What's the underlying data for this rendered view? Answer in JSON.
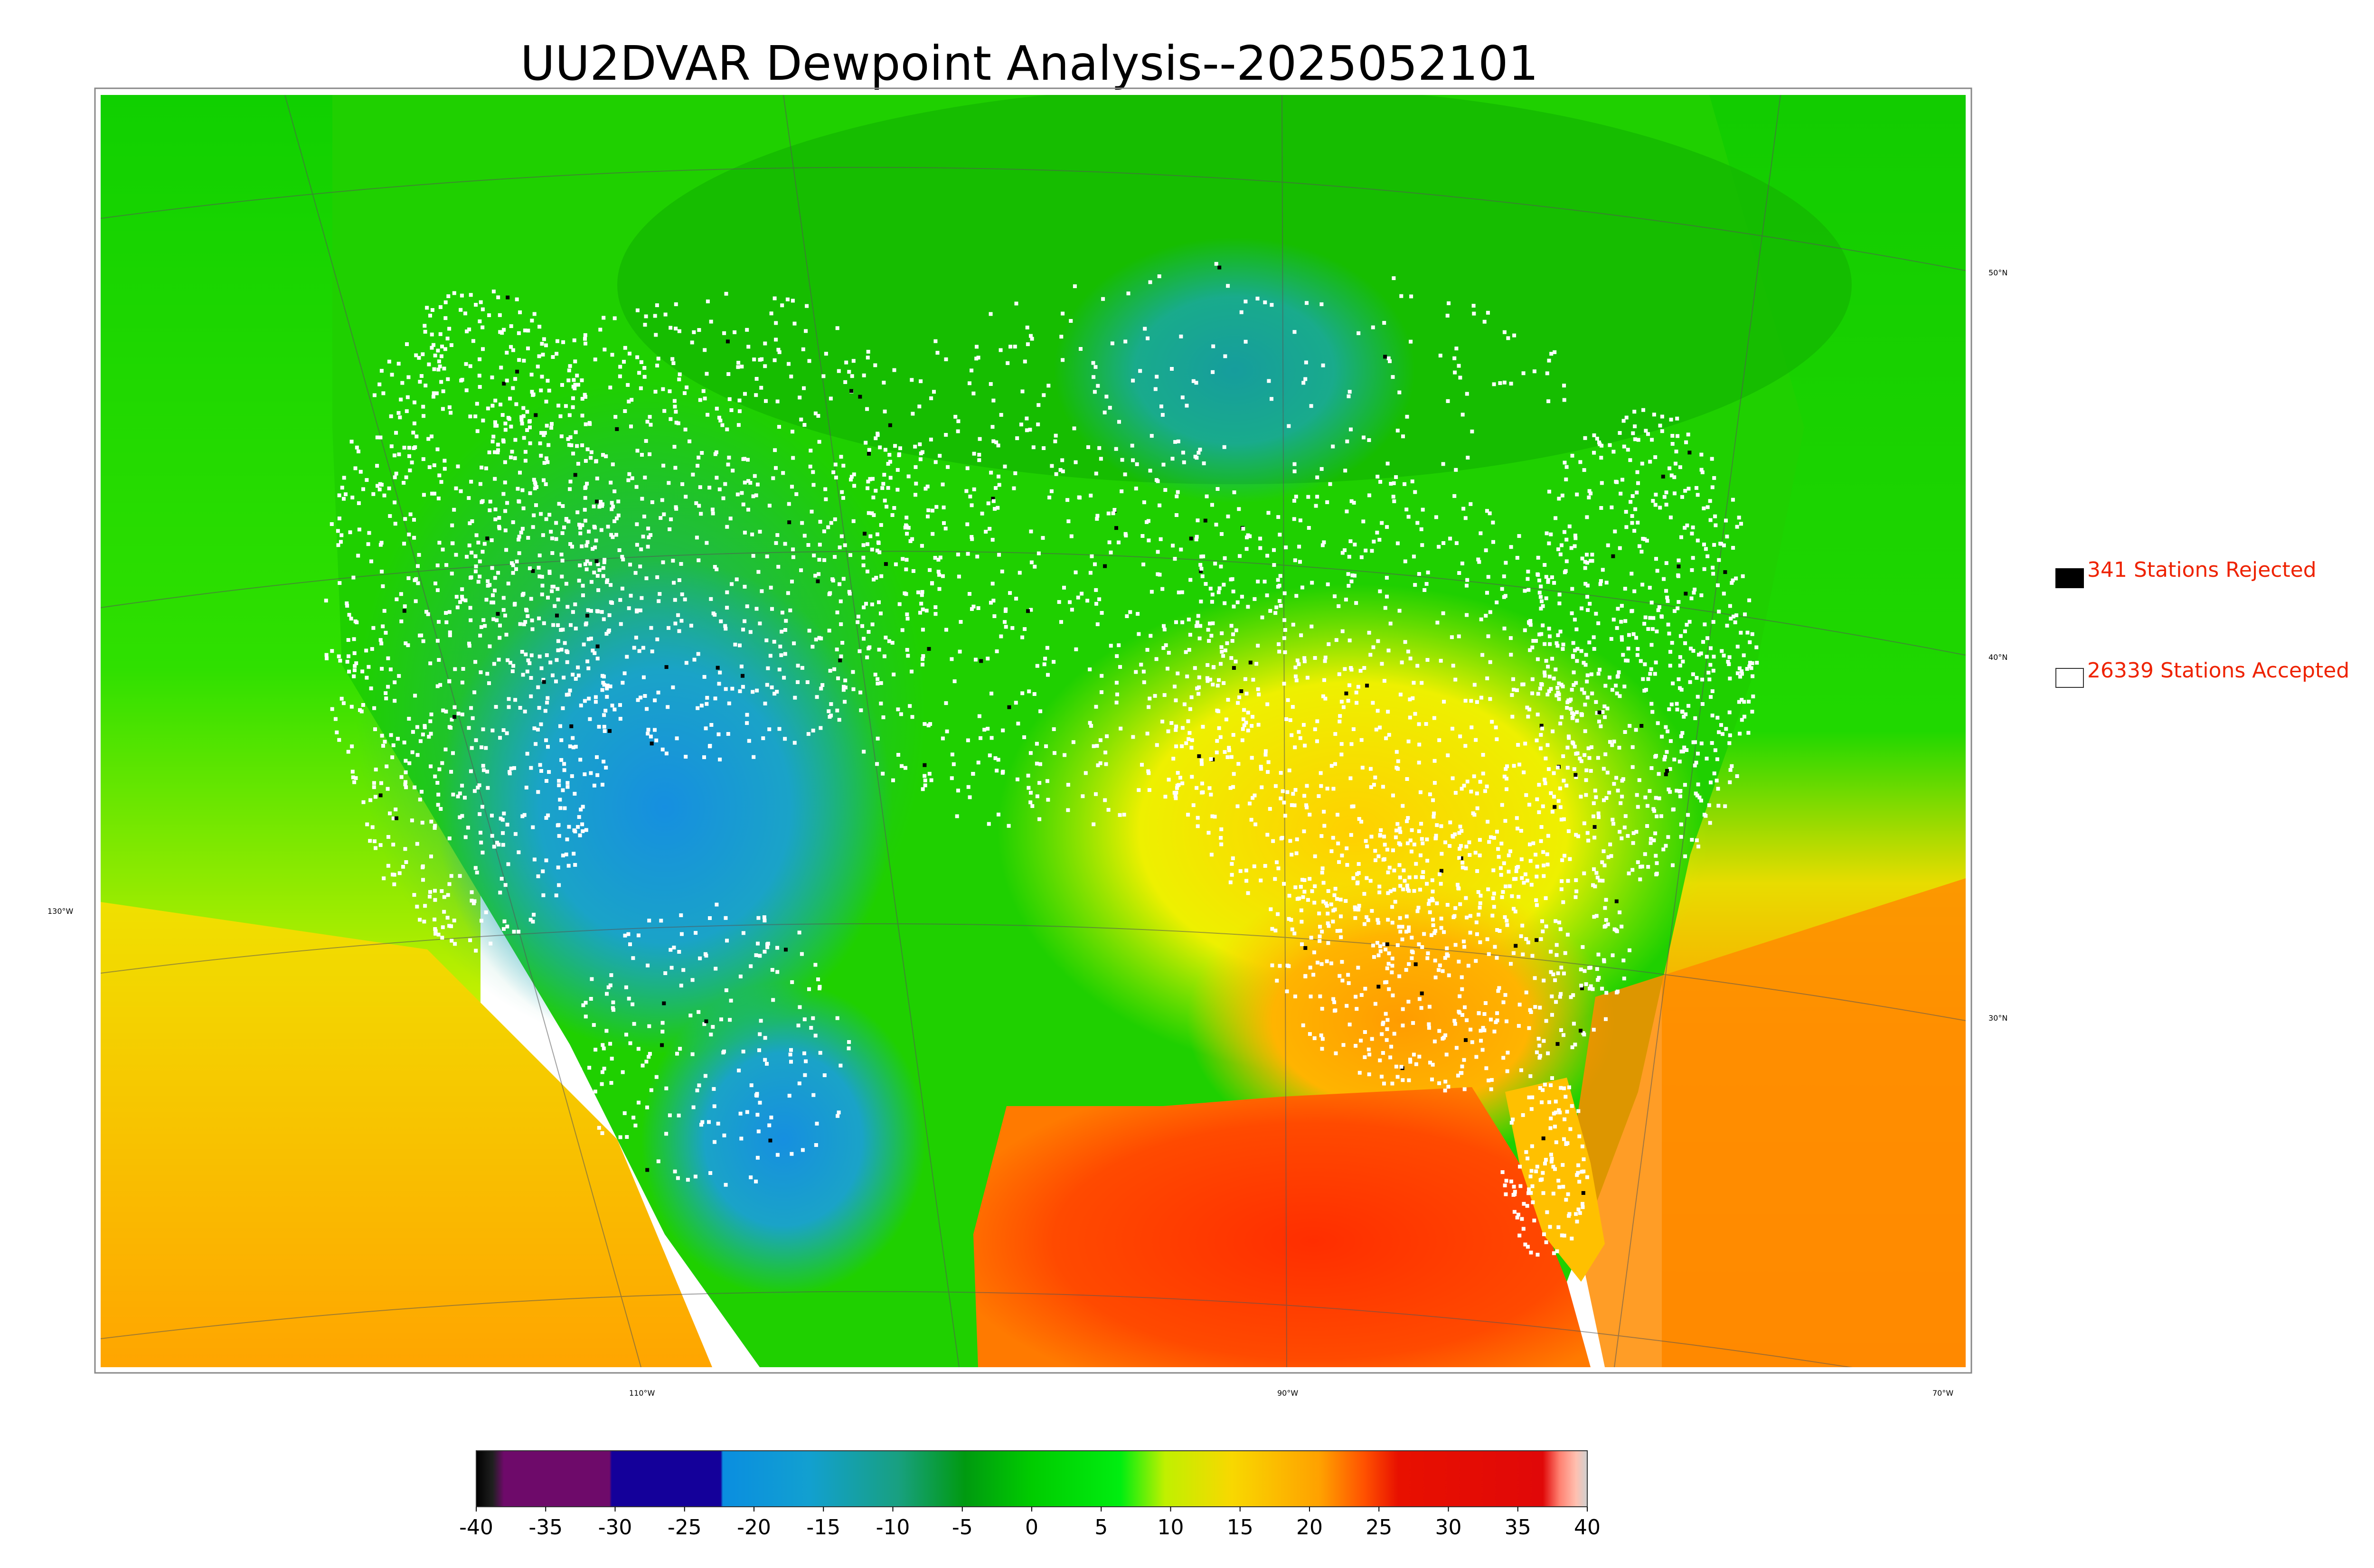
{
  "title": "UU2DVAR Dewpoint Analysis--2025052101",
  "legend": {
    "rejected": {
      "label": "341 Stations Rejected",
      "swatch_color": "#000000"
    },
    "accepted": {
      "label": "26339 Stations Accepted",
      "swatch_color": "#ffffff"
    },
    "text_color": "#ee2200"
  },
  "lat_labels": [
    "50°N",
    "40°N",
    "30°N"
  ],
  "lon_labels": [
    "130°W",
    "110°W",
    "90°W",
    "70°W"
  ],
  "colorbar": {
    "ticks": [
      "-40",
      "-35",
      "-30",
      "-25",
      "-20",
      "-15",
      "-10",
      "-5",
      "0",
      "5",
      "10",
      "15",
      "20",
      "25",
      "30",
      "35",
      "40"
    ],
    "range": [
      -40,
      40
    ]
  },
  "colors": {
    "ocean_warm": "#ff7a00",
    "gulf": "#ff3a00",
    "land_green": "#22dd00",
    "cold_blue": "#1aa0d8",
    "purple": "#6e0a6a",
    "navy": "#14009a",
    "red": "#e00808"
  }
}
